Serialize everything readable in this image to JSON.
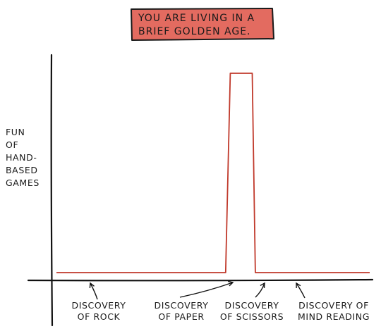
{
  "title": {
    "line1": "YOU ARE LIVING IN A",
    "line2": "BRIEF GOLDEN AGE.",
    "box_color": "#e36b60"
  },
  "chart_data": {
    "type": "line",
    "ylabel_lines": [
      "FUN",
      "OF",
      "HAND-",
      "BASED",
      "GAMES"
    ],
    "xlabel": "",
    "line_color": "#c0392b",
    "axis_color": "#111111",
    "grid": false,
    "legend": "none",
    "series": [
      {
        "x": [
          0,
          0.53,
          0.54,
          0.555,
          0.565,
          0.625,
          0.635,
          0.65,
          1
        ],
        "y": [
          0.04,
          0.04,
          0.04,
          0.92,
          0.92,
          0.92,
          0.04,
          0.04,
          0.04
        ]
      }
    ],
    "annotations": [
      {
        "lines": [
          "DISCOVERY",
          "OF ROCK"
        ],
        "x_frac": 0.128
      },
      {
        "lines": [
          "DISCOVERY",
          "OF PAPER"
        ],
        "x_frac": 0.57
      },
      {
        "lines": [
          "DISCOVERY",
          "OF SCISSORS"
        ],
        "x_frac": 0.655
      },
      {
        "lines": [
          "DISCOVERY OF",
          "MIND READING"
        ],
        "x_frac": 0.775
      }
    ]
  }
}
